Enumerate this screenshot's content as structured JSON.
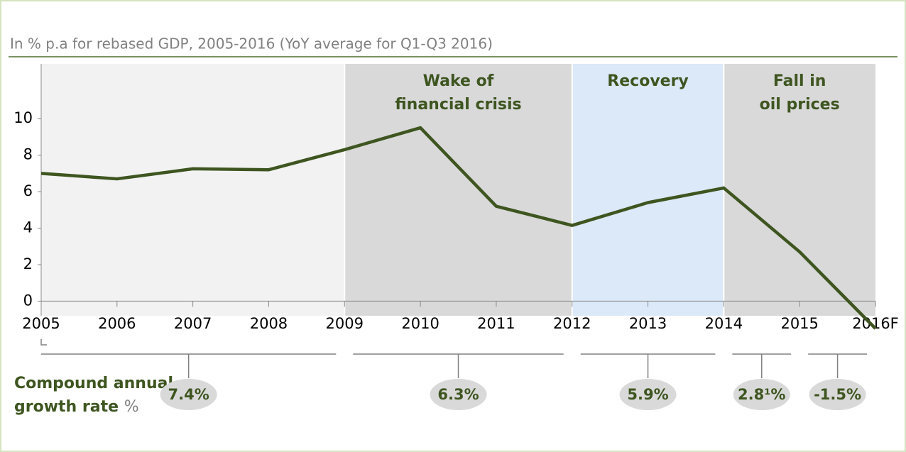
{
  "chart_data": {
    "type": "line",
    "subtitle": "In % p.a for rebased GDP, 2005-2016 (YoY average for Q1-Q3 2016)",
    "categories": [
      "2005",
      "2006",
      "2007",
      "2008",
      "2009",
      "2010",
      "2011",
      "2012",
      "2013",
      "2014",
      "2015",
      "2016F"
    ],
    "values": [
      7.0,
      6.7,
      7.25,
      7.2,
      8.3,
      9.5,
      5.2,
      4.15,
      5.4,
      6.2,
      2.7,
      -1.5
    ],
    "color": "#3e5520",
    "ylim": [
      -0.8,
      13
    ],
    "yticks": [
      0,
      2,
      4,
      6,
      8,
      10
    ],
    "periods": [
      {
        "from": "2005",
        "to": "2009",
        "color": "#f2f2f2",
        "lines": []
      },
      {
        "from": "2009",
        "to": "2012",
        "color": "#d9d9d9",
        "lines": [
          "Wake of",
          "financial crisis"
        ]
      },
      {
        "from": "2012",
        "to": "2014",
        "color": "#dbe9f8",
        "lines": [
          "Recovery"
        ]
      },
      {
        "from": "2014",
        "to": "2016F",
        "color": "#d9d9d9",
        "lines": [
          "Fall in",
          "oil prices"
        ]
      }
    ],
    "cagr": {
      "label_lines": [
        "Compound annual",
        "growth rate"
      ],
      "unit": "%",
      "items": [
        {
          "from": "2005",
          "to": "2009",
          "value": 7.4,
          "value_label": "7.4%"
        },
        {
          "from": "2009",
          "to": "2012",
          "value": 6.3,
          "value_label": "6.3%"
        },
        {
          "from": "2012",
          "to": "2014",
          "value": 5.9,
          "value_label": "5.9%"
        },
        {
          "from": "2014",
          "to": "2015",
          "value": 2.8,
          "value_label": "2.8¹%"
        },
        {
          "from": "2015",
          "to": "2016F",
          "value": -1.5,
          "value_label": "-1.5%"
        }
      ]
    }
  }
}
